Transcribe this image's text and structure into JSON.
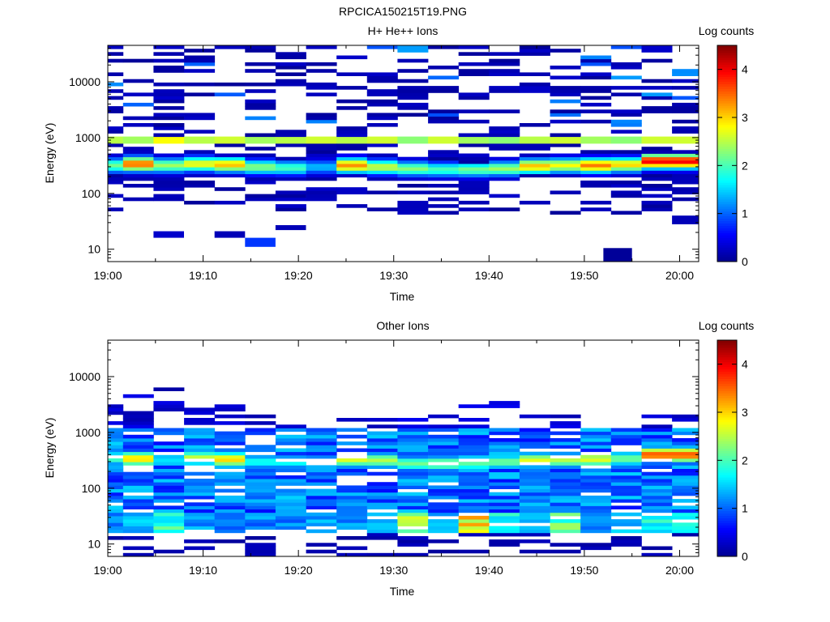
{
  "figure_title": "RPCICA150215T19.PNG",
  "colormap_stops": [
    "#00008f",
    "#0000ff",
    "#0080ff",
    "#00ffff",
    "#80ff80",
    "#ffff00",
    "#ff8000",
    "#ff0000",
    "#800000"
  ],
  "chart_data": [
    {
      "type": "heatmap",
      "title": "H+ He++ Ions",
      "xlabel": "Time",
      "ylabel": "Energy (eV)",
      "x_ticks": [
        "19:00",
        "19:10",
        "19:20",
        "19:30",
        "19:40",
        "19:50",
        "20:00"
      ],
      "x_range_minutes": [
        0,
        62
      ],
      "y_scale": "log",
      "y_range": [
        6,
        45000
      ],
      "y_ticks": [
        "10",
        "100",
        "1000",
        "10000"
      ],
      "colorbar": {
        "label": "Log counts",
        "range": [
          0,
          4.5
        ],
        "ticks": [
          "0",
          "1",
          "2",
          "3",
          "4"
        ]
      },
      "time_columns_minutes": [
        1.6,
        4.8,
        8.0,
        11.2,
        14.4,
        17.6,
        20.8,
        24.0,
        27.2,
        30.4,
        33.6,
        36.8,
        40.0,
        43.2,
        46.4,
        49.6,
        52.8,
        56.0,
        59.2,
        62.0
      ],
      "peak_energy_eV": [
        320,
        340,
        320,
        340,
        330,
        300,
        290,
        300,
        320,
        300,
        280,
        270,
        270,
        280,
        310,
        320,
        320,
        330,
        380,
        380
      ],
      "peak_log_counts": [
        2.2,
        3.5,
        2.4,
        2.8,
        3.1,
        2.3,
        2.0,
        1.4,
        3.3,
        2.6,
        2.3,
        2.0,
        2.2,
        2.4,
        3.1,
        2.8,
        3.4,
        3.0,
        4.0,
        4.0
      ],
      "band_1keV_log_counts": [
        2.5,
        2.4,
        2.8,
        2.5,
        2.6,
        2.4,
        2.5,
        2.6,
        2.5,
        2.6,
        2.3,
        2.6,
        2.4,
        2.3,
        2.5,
        2.6,
        2.4,
        2.3,
        2.6,
        2.6
      ],
      "sparse_low_energy_cells": [
        {
          "t": [
            4.8,
            8.0
          ],
          "e": [
            16,
            21
          ],
          "v": 0.3
        },
        {
          "t": [
            11.2,
            14.4
          ],
          "e": [
            16,
            21
          ],
          "v": 0.2
        },
        {
          "t": [
            14.4,
            17.6
          ],
          "e": [
            11,
            16
          ],
          "v": 0.8
        },
        {
          "t": [
            17.6,
            20.8
          ],
          "e": [
            22,
            27
          ],
          "v": 0.2
        },
        {
          "t": [
            52.0,
            55.0
          ],
          "e": [
            6,
            10.5
          ],
          "v": 0.05
        },
        {
          "t": [
            59.2,
            62.0
          ],
          "e": [
            28,
            40
          ],
          "v": 0.2
        }
      ]
    },
    {
      "type": "heatmap",
      "title": "Other Ions",
      "xlabel": "Time",
      "ylabel": "Energy (eV)",
      "x_ticks": [
        "19:00",
        "19:10",
        "19:20",
        "19:30",
        "19:40",
        "19:50",
        "20:00"
      ],
      "x_range_minutes": [
        0,
        62
      ],
      "y_scale": "log",
      "y_range": [
        6,
        45000
      ],
      "y_ticks": [
        "10",
        "100",
        "1000",
        "10000"
      ],
      "colorbar": {
        "label": "Log counts",
        "range": [
          0,
          4.5
        ],
        "ticks": [
          "0",
          "1",
          "2",
          "3",
          "4"
        ]
      },
      "time_columns_minutes": [
        1.6,
        4.8,
        8.0,
        11.2,
        14.4,
        17.6,
        20.8,
        24.0,
        27.2,
        30.4,
        33.6,
        36.8,
        40.0,
        43.2,
        46.4,
        49.6,
        52.8,
        56.0,
        59.2,
        62.0
      ],
      "peak_energy_eV": [
        350,
        340,
        330,
        350,
        330,
        300,
        300,
        300,
        330,
        320,
        280,
        280,
        280,
        300,
        320,
        320,
        330,
        340,
        400,
        400
      ],
      "peak_log_counts": [
        2.1,
        3.0,
        1.6,
        2.6,
        3.0,
        1.8,
        1.8,
        1.6,
        2.7,
        2.5,
        2.2,
        2.4,
        2.1,
        2.2,
        2.7,
        2.5,
        2.7,
        2.2,
        3.6,
        3.6
      ],
      "low_energy_20eV_log_counts": [
        1.0,
        1.6,
        2.2,
        1.3,
        1.2,
        0.8,
        1.1,
        1.4,
        1.3,
        1.5,
        2.8,
        1.5,
        3.3,
        2.0,
        1.6,
        2.4,
        1.2,
        1.6,
        2.0,
        2.0
      ],
      "max_energy_eV": [
        3400,
        5200,
        9000,
        2900,
        4100,
        2000,
        1900,
        1600,
        2000,
        1900,
        1700,
        2000,
        3700,
        3500,
        2500,
        2000,
        1500,
        1800,
        2200,
        2200
      ]
    }
  ]
}
